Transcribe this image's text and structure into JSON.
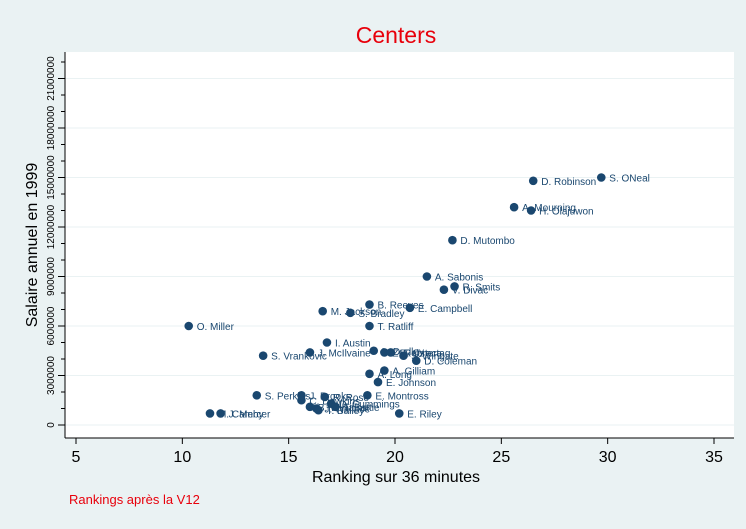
{
  "chart_data": {
    "type": "scatter",
    "title": "Centers",
    "xlabel": "Ranking sur 36 minutes",
    "ylabel": "Salaire annuel en 1999",
    "xlim": [
      5,
      35
    ],
    "ylim": [
      0,
      22000000
    ],
    "xticks": [
      5,
      10,
      15,
      20,
      25,
      30,
      35
    ],
    "yticks": [
      0,
      3000000,
      6000000,
      9000000,
      12000000,
      15000000,
      18000000,
      21000000
    ],
    "y_minor_step": 1000000,
    "grid": true,
    "colors": {
      "marker": "#1a476f",
      "title": "#e8000b",
      "note": "#e8000b",
      "plot_bg": "#ffffff",
      "outer_bg": "#eaf2f3",
      "grid": "#eaf2f3"
    },
    "points": [
      {
        "label": "S. ONeal",
        "x": 29.7,
        "y": 15000000
      },
      {
        "label": "D. Robinson",
        "x": 26.5,
        "y": 14800000
      },
      {
        "label": "A. Mourning",
        "x": 25.6,
        "y": 13200000
      },
      {
        "label": "H. Olajuwon",
        "x": 26.4,
        "y": 13000000
      },
      {
        "label": "D. Mutombo",
        "x": 22.7,
        "y": 11200000
      },
      {
        "label": "A. Sabonis",
        "x": 21.5,
        "y": 9000000
      },
      {
        "label": "R. Smits",
        "x": 22.8,
        "y": 8400000
      },
      {
        "label": "V. Divac",
        "x": 22.3,
        "y": 8200000
      },
      {
        "label": "B. Reeves",
        "x": 18.8,
        "y": 7300000
      },
      {
        "label": "E. Campbell",
        "x": 20.7,
        "y": 7100000
      },
      {
        "label": "M. Jackson",
        "x": 16.6,
        "y": 6900000
      },
      {
        "label": "S. Bradley",
        "x": 17.9,
        "y": 6800000
      },
      {
        "label": "T. Ratliff",
        "x": 18.8,
        "y": 6000000
      },
      {
        "label": "O. Miller",
        "x": 10.3,
        "y": 6000000
      },
      {
        "label": "I. Austin",
        "x": 16.8,
        "y": 5000000
      },
      {
        "label": "J. McIlvaine",
        "x": 16.0,
        "y": 4400000
      },
      {
        "label": "S. Vrankovic",
        "x": 13.8,
        "y": 4200000
      },
      {
        "label": "L. Dudley",
        "x": 19.0,
        "y": 4500000
      },
      {
        "label": "Z. Rebraca",
        "x": 19.5,
        "y": 4400000
      },
      {
        "label": "G. Ostertag",
        "x": 19.8,
        "y": 4400000
      },
      {
        "label": "J. Wingate",
        "x": 20.4,
        "y": 4200000
      },
      {
        "label": "D. Coleman",
        "x": 21.0,
        "y": 3900000
      },
      {
        "label": "A. Gilliam",
        "x": 19.5,
        "y": 3300000
      },
      {
        "label": "A. Long",
        "x": 18.8,
        "y": 3100000
      },
      {
        "label": "E. Johnson",
        "x": 19.2,
        "y": 2600000
      },
      {
        "label": "S. Perkins",
        "x": 13.5,
        "y": 1800000
      },
      {
        "label": "J. Brooks",
        "x": 15.6,
        "y": 1800000
      },
      {
        "label": "E. Montross",
        "x": 18.7,
        "y": 1800000
      },
      {
        "label": "R. Rose",
        "x": 16.7,
        "y": 1700000
      },
      {
        "label": "C. Dawkins",
        "x": 15.6,
        "y": 1500000
      },
      {
        "label": "D. Cummings",
        "x": 17.0,
        "y": 1300000
      },
      {
        "label": "B. Williams",
        "x": 16.0,
        "y": 1100000
      },
      {
        "label": "T. Battie",
        "x": 17.2,
        "y": 1100000
      },
      {
        "label": "J. Wallace",
        "x": 16.3,
        "y": 1000000
      },
      {
        "label": "T. Bailey",
        "x": 16.4,
        "y": 900000
      },
      {
        "label": "E. Riley",
        "x": 20.2,
        "y": 700000
      },
      {
        "label": "M. Camby",
        "x": 11.3,
        "y": 700000
      },
      {
        "label": "J. Mercer",
        "x": 11.8,
        "y": 700000
      }
    ]
  },
  "note": "Rankings après la V12"
}
